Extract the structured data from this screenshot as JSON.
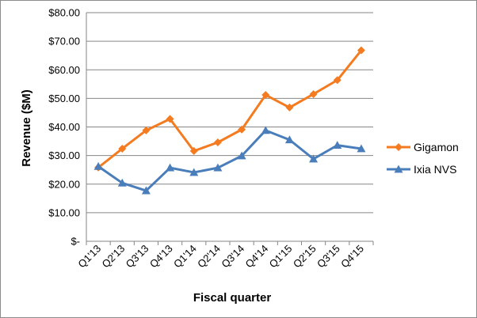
{
  "chart_data": {
    "type": "line",
    "title": "",
    "xlabel": "Fiscal quarter",
    "ylabel": "Revenue ($M)",
    "ylim": [
      0,
      80
    ],
    "yticks": [
      "$-",
      "$10.00",
      "$20.00",
      "$30.00",
      "$40.00",
      "$50.00",
      "$60.00",
      "$70.00",
      "$80.00"
    ],
    "categories": [
      "Q1'13",
      "Q2'13",
      "Q3'13",
      "Q4'13",
      "Q1'14",
      "Q2'14",
      "Q3'14",
      "Q4'14",
      "Q1'15",
      "Q2'15",
      "Q3'15",
      "Q4'15"
    ],
    "grid": true,
    "legend_position": "right",
    "series": [
      {
        "name": "Gigamon",
        "color": "#f47b20",
        "marker": "diamond",
        "values": [
          25.8,
          32.4,
          38.8,
          42.8,
          31.6,
          34.6,
          39.1,
          51.2,
          46.8,
          51.5,
          56.4,
          66.8
        ]
      },
      {
        "name": "Ixia NVS",
        "color": "#4a7ebb",
        "marker": "triangle",
        "values": [
          26.2,
          20.4,
          17.7,
          25.7,
          24.1,
          25.7,
          29.9,
          38.8,
          35.5,
          28.8,
          33.6,
          32.4
        ]
      }
    ]
  }
}
